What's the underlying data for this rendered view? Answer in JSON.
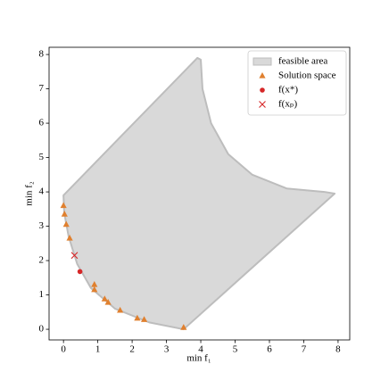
{
  "chart_data": {
    "type": "scatter",
    "xlabel": "min f₁",
    "ylabel": "min f₂",
    "xlim": [
      -0.42,
      8.34
    ],
    "ylim": [
      -0.31,
      8.21
    ],
    "xticks": [
      0,
      1,
      2,
      3,
      4,
      5,
      6,
      7,
      8
    ],
    "yticks": [
      0,
      1,
      2,
      3,
      4,
      5,
      6,
      7,
      8
    ],
    "legend": "upper right",
    "area": {
      "name": "feasible area",
      "color": "#d9d9d9",
      "x": [
        0,
        3.9,
        4.0,
        4.05,
        4.3,
        4.8,
        5.5,
        6.5,
        7.6,
        7.9,
        3.5,
        2.5,
        1.5,
        0.8,
        0.4,
        0.15,
        0.02,
        0
      ],
      "y": [
        3.9,
        7.9,
        7.85,
        7.0,
        6.0,
        5.1,
        4.5,
        4.1,
        4.0,
        3.95,
        0,
        0.2,
        0.6,
        1.2,
        1.9,
        2.7,
        3.4,
        3.9
      ]
    },
    "series": [
      {
        "name": "Solution space",
        "color": "#e0802f",
        "marker": "triangle",
        "x": [
          0,
          0.03,
          0.08,
          0.18,
          0.9,
          0.9,
          1.2,
          1.3,
          1.65,
          2.15,
          2.35,
          3.5
        ],
        "y": [
          3.6,
          3.35,
          3.05,
          2.65,
          1.3,
          1.15,
          0.88,
          0.78,
          0.55,
          0.32,
          0.28,
          0.05
        ]
      },
      {
        "name": "f(x*)",
        "color": "#d62728",
        "marker": "circle",
        "x": [
          0.48
        ],
        "y": [
          1.68
        ]
      },
      {
        "name": "f(xₚ)",
        "color": "#d62728",
        "marker": "x",
        "x": [
          0.32
        ],
        "y": [
          2.15
        ]
      }
    ]
  }
}
